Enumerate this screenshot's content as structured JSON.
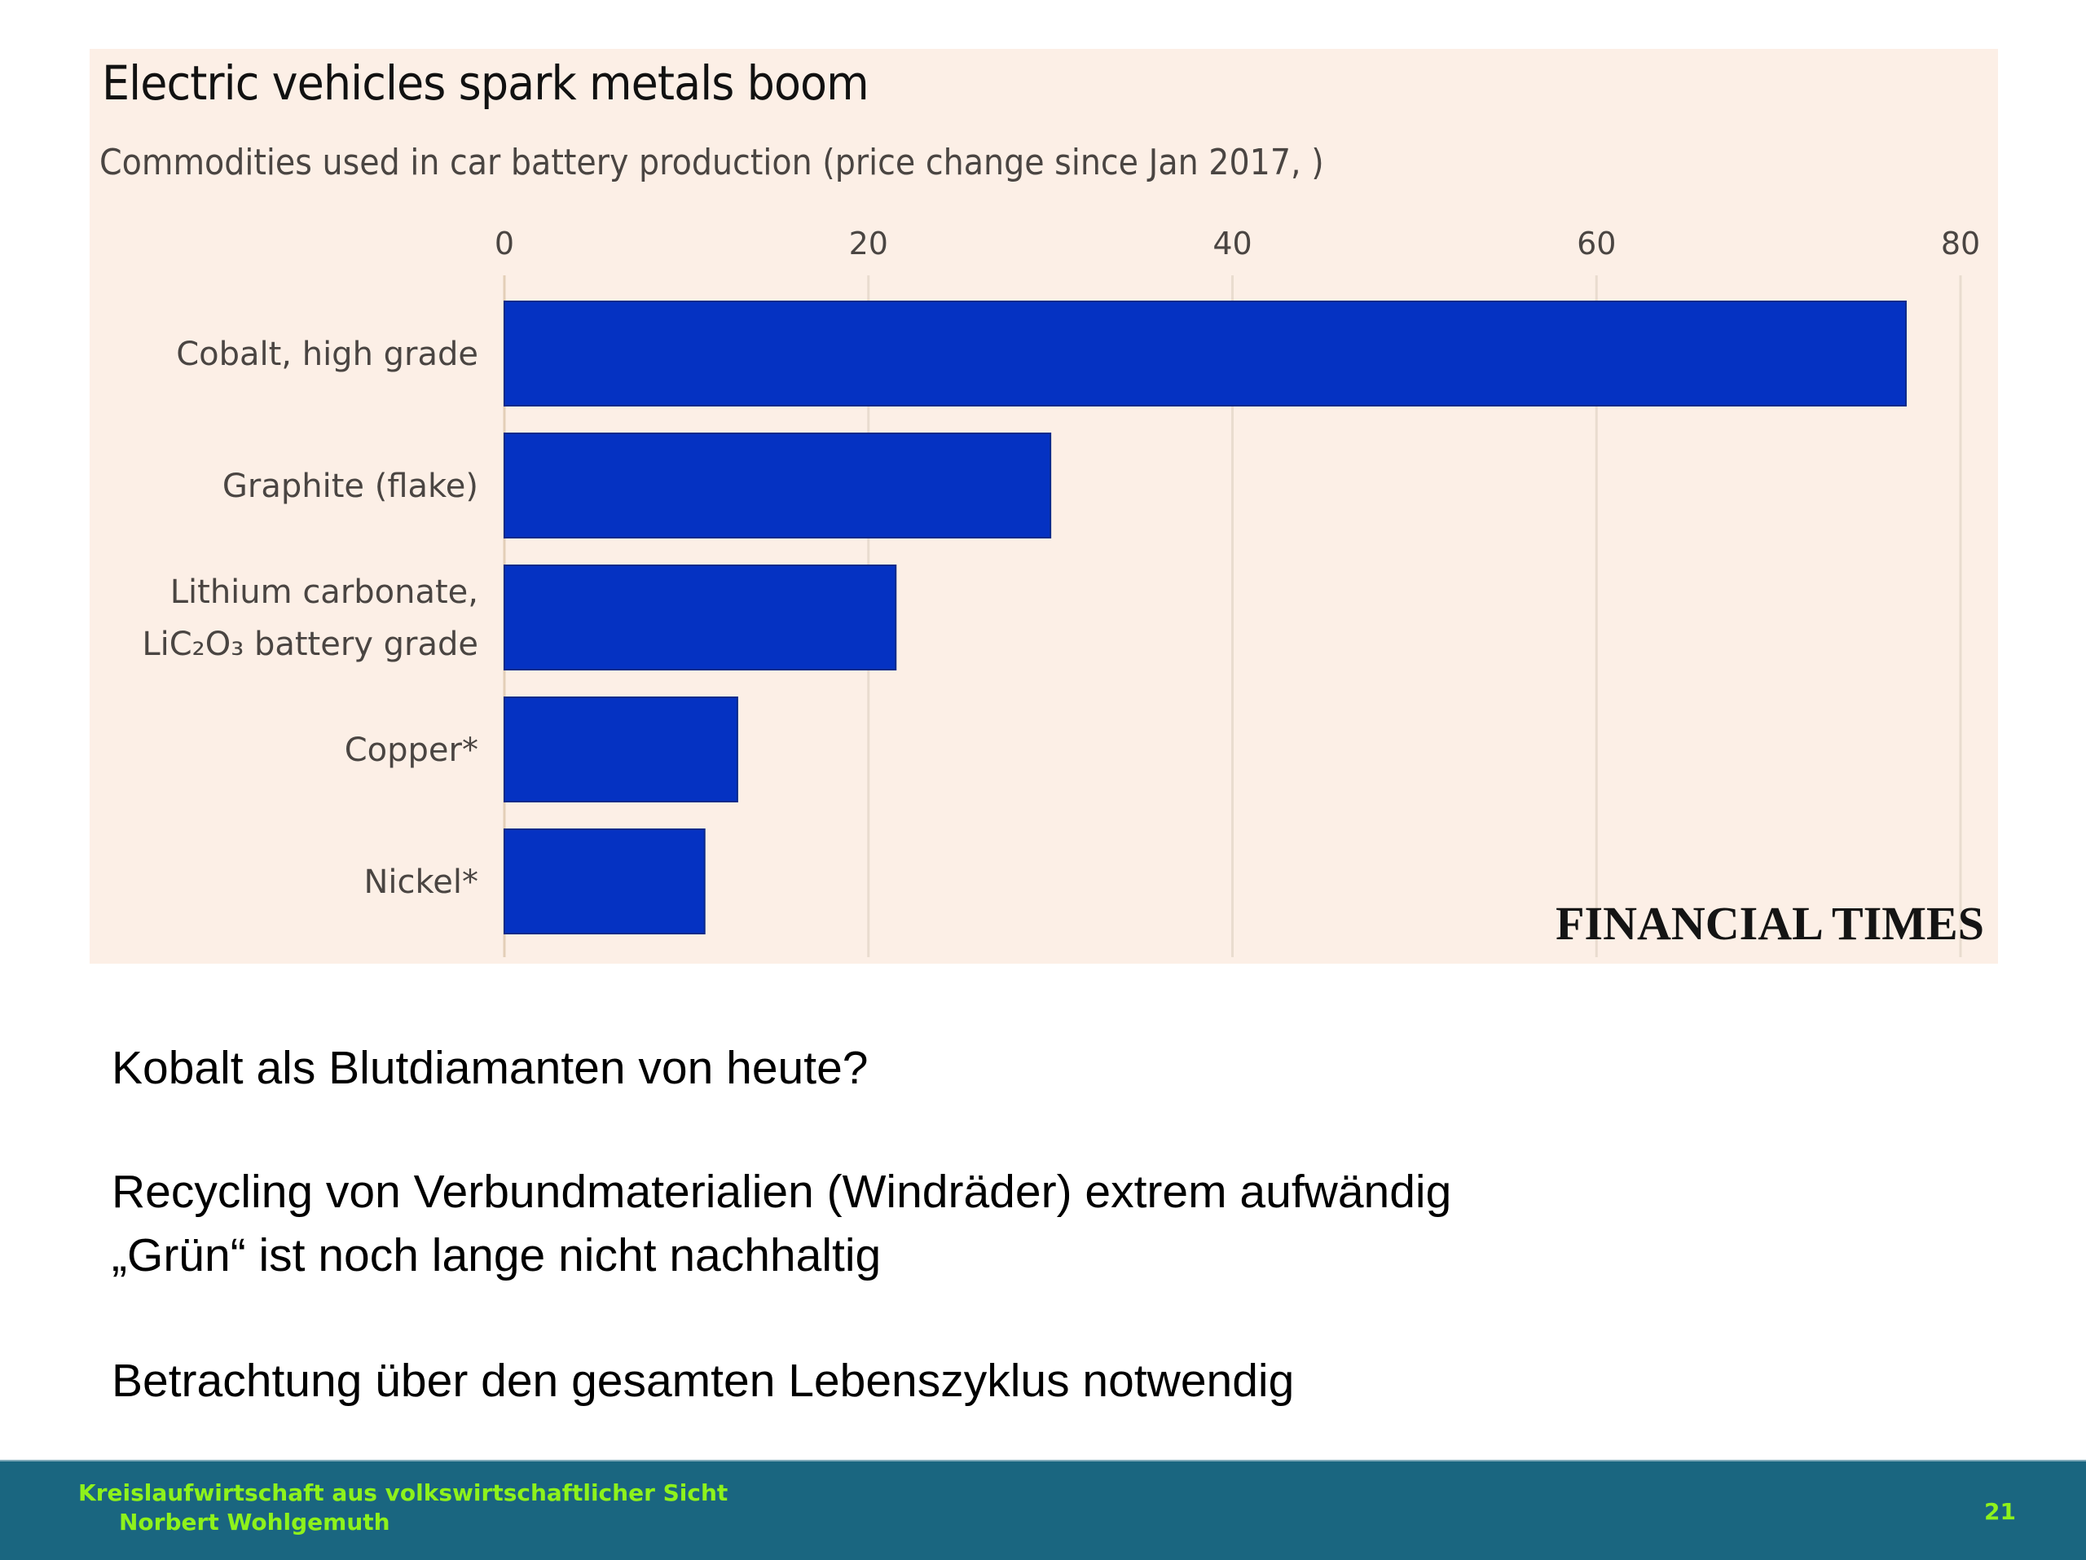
{
  "chart_data": {
    "type": "bar",
    "orientation": "horizontal",
    "title": "Electric vehicles spark metals boom",
    "subtitle": "Commodities used in car battery production (price change since Jan 2017, )",
    "categories": [
      [
        "Cobalt, high grade"
      ],
      [
        "Graphite (flake)"
      ],
      [
        "Lithium carbonate,",
        "LiC₂O₃ battery grade"
      ],
      [
        "Copper*"
      ],
      [
        "Nickel*"
      ]
    ],
    "values": [
      77,
      30,
      21.5,
      12.8,
      11
    ],
    "xlabel": "",
    "ylabel": "",
    "xlim": [
      0,
      80
    ],
    "x_ticks": [
      0,
      20,
      40,
      60,
      80
    ],
    "tick_labels": [
      "0",
      "20",
      "40",
      "60",
      "80"
    ],
    "grid": true,
    "axis_position": "top",
    "bar_color": "#0532c2",
    "source": "FINANCIAL TIMES"
  },
  "colors": {
    "panel_background": "#fcefe6",
    "bar": "#0532c2",
    "gridline": "#e9dccf",
    "footer_background": "#1a6680",
    "footer_text": "#8ef21b"
  },
  "body": {
    "lines": [
      "Kobalt als Blutdiamanten von heute?",
      "Recycling von Verbundmaterialien (Windräder) extrem aufwändig",
      "„Grün“ ist noch lange nicht nachhaltig",
      "Betrachtung über den gesamten Lebenszyklus notwendig"
    ]
  },
  "footer": {
    "title": "Kreislaufwirtschaft aus volkswirtschaftlicher Sicht",
    "author": "Norbert Wohlgemuth",
    "page_number": "21"
  }
}
